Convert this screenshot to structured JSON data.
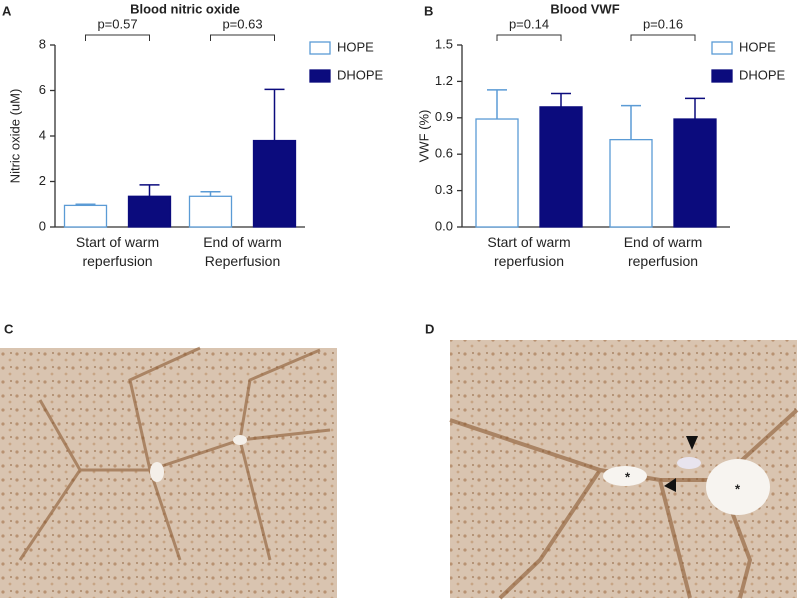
{
  "chart_data": [
    {
      "type": "bar",
      "panel": "A",
      "title": "Blood nitric oxide",
      "y_label": "Nitric oxide (uM)",
      "categories": [
        "Start of warm\nreperfusion",
        "End of warm\nReperfusion"
      ],
      "series": [
        {
          "name": "HOPE",
          "color": "#5b9bd5",
          "hollow": true,
          "values": [
            0.95,
            1.35
          ],
          "errors": [
            0.05,
            0.2
          ]
        },
        {
          "name": "DHOPE",
          "color": "#0b0b7d",
          "hollow": false,
          "values": [
            1.35,
            3.8
          ],
          "errors": [
            0.5,
            2.25
          ]
        }
      ],
      "annotations": [
        "p=0.57",
        "p=0.63"
      ],
      "ylim": [
        0,
        8
      ],
      "yticks": [
        0,
        2,
        4,
        6,
        8
      ],
      "grid": false,
      "legend": "top-right"
    },
    {
      "type": "bar",
      "panel": "B",
      "title": "Blood VWF",
      "y_label": "VWF (%)",
      "categories": [
        "Start of warm\nreperfusion",
        "End of warm\nreperfusion"
      ],
      "series": [
        {
          "name": "HOPE",
          "color": "#5b9bd5",
          "hollow": true,
          "values": [
            0.89,
            0.72
          ],
          "errors": [
            0.24,
            0.28
          ]
        },
        {
          "name": "DHOPE",
          "color": "#0b0b7d",
          "hollow": false,
          "values": [
            0.99,
            0.89
          ],
          "errors": [
            0.11,
            0.17
          ]
        }
      ],
      "annotations": [
        "p=0.14",
        "p=0.16"
      ],
      "ylim": [
        0,
        1.5
      ],
      "yticks": [
        {
          "value": 0,
          "label": "0.0"
        },
        0.3,
        0.6,
        0.9,
        1.2,
        1.5
      ],
      "grid": false,
      "legend": "top-right"
    }
  ],
  "images": [
    {
      "panel": "C"
    },
    {
      "panel": "D"
    }
  ]
}
